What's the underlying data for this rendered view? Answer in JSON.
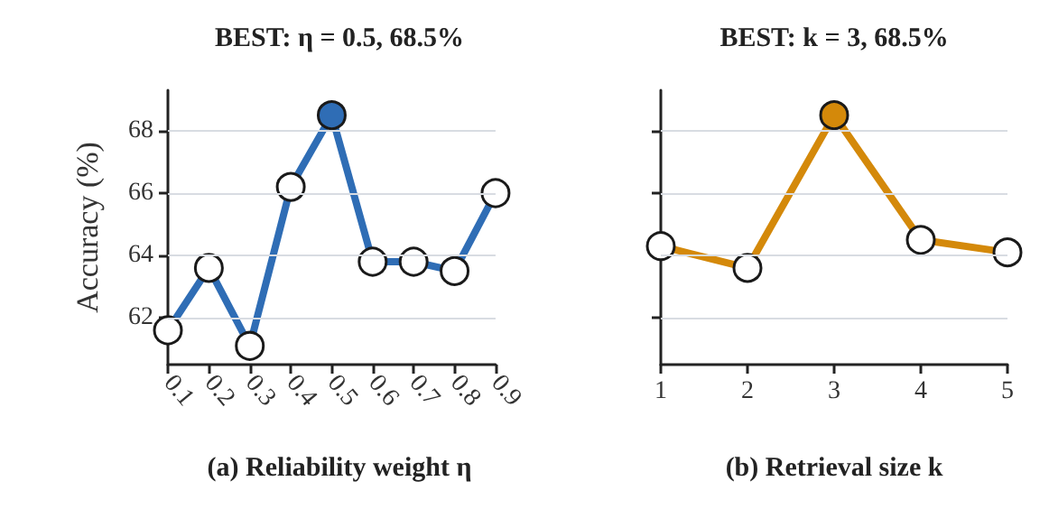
{
  "chart_data": [
    {
      "type": "line",
      "title": "BEST: η = 0.5, 68.5%",
      "xlabel": "(a) Reliability weight η",
      "ylabel": "Accuracy (%)",
      "x": [
        0.1,
        0.2,
        0.3,
        0.4,
        0.5,
        0.6,
        0.7,
        0.8,
        0.9
      ],
      "xlim": [
        0.1,
        0.9
      ],
      "xticks": [
        0.1,
        0.2,
        0.3,
        0.4,
        0.5,
        0.6,
        0.7,
        0.8,
        0.9
      ],
      "ylim": [
        60.5,
        69.3
      ],
      "yticks": [
        62,
        64,
        66,
        68
      ],
      "grid": "y",
      "marker": "circle",
      "line_style": "solid",
      "series": [
        {
          "color": "#2f6db5",
          "colors": [
            "#ffffff",
            "#ffffff",
            "#ffffff",
            "#ffffff",
            "#2f6db5",
            "#ffffff",
            "#ffffff",
            "#ffffff",
            "#ffffff"
          ],
          "values": [
            61.6,
            63.6,
            61.1,
            66.2,
            68.5,
            63.8,
            63.8,
            63.5,
            66.0
          ]
        }
      ]
    },
    {
      "type": "line",
      "title": "BEST: k = 3, 68.5%",
      "xlabel": "(b) Retrieval size k",
      "x": [
        1,
        2,
        3,
        4,
        5
      ],
      "xlim": [
        1,
        5
      ],
      "xticks": [
        1,
        2,
        3,
        4,
        5
      ],
      "ylim": [
        60.5,
        69.3
      ],
      "yticks": [
        62,
        64,
        66,
        68
      ],
      "tick_labels": "x",
      "grid": "y",
      "marker": "circle",
      "line_style": "solid",
      "series": [
        {
          "color": "#d4890a",
          "colors": [
            "#ffffff",
            "#ffffff",
            "#d4890a",
            "#ffffff",
            "#ffffff"
          ],
          "values": [
            64.3,
            63.6,
            68.5,
            64.5,
            64.1
          ]
        }
      ]
    }
  ]
}
